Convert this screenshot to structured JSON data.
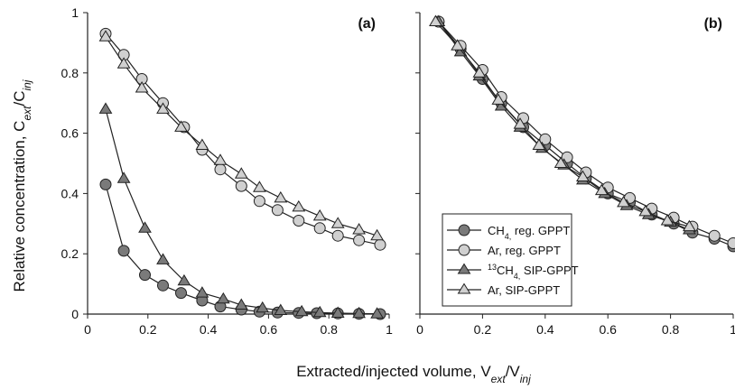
{
  "chart_data": [
    {
      "panel_label": "(a)",
      "type": "line",
      "xlim": [
        0,
        1
      ],
      "ylim": [
        0,
        1
      ],
      "xticks": [
        "0",
        "0.2",
        "0.4",
        "0.6",
        "0.8",
        "1"
      ],
      "yticks": [
        "0",
        "0.2",
        "0.4",
        "0.6",
        "0.8",
        "1"
      ],
      "grid": false,
      "series": [
        {
          "marker": "circle",
          "fill": "#7a7a7a",
          "x": [
            0.06,
            0.12,
            0.19,
            0.25,
            0.31,
            0.38,
            0.44,
            0.51,
            0.57,
            0.63,
            0.7,
            0.76,
            0.83,
            0.9,
            0.97
          ],
          "y": [
            0.43,
            0.21,
            0.13,
            0.095,
            0.07,
            0.045,
            0.025,
            0.015,
            0.008,
            0.005,
            0.004,
            0.003,
            0.002,
            0.001,
            0.0
          ]
        },
        {
          "marker": "circle",
          "fill": "#d0d0d0",
          "x": [
            0.06,
            0.12,
            0.18,
            0.25,
            0.32,
            0.38,
            0.44,
            0.51,
            0.57,
            0.63,
            0.7,
            0.77,
            0.83,
            0.9,
            0.97
          ],
          "y": [
            0.93,
            0.86,
            0.78,
            0.7,
            0.62,
            0.545,
            0.48,
            0.425,
            0.375,
            0.345,
            0.31,
            0.285,
            0.26,
            0.245,
            0.23
          ]
        },
        {
          "marker": "triangle",
          "fill": "#7a7a7a",
          "x": [
            0.06,
            0.12,
            0.19,
            0.25,
            0.32,
            0.38,
            0.45,
            0.51,
            0.58,
            0.64,
            0.71,
            0.77,
            0.83,
            0.9,
            0.96
          ],
          "y": [
            0.68,
            0.45,
            0.285,
            0.18,
            0.11,
            0.07,
            0.05,
            0.03,
            0.02,
            0.012,
            0.008,
            0.005,
            0.003,
            0.002,
            0.001
          ]
        },
        {
          "marker": "triangle",
          "fill": "#d0d0d0",
          "x": [
            0.06,
            0.12,
            0.18,
            0.25,
            0.31,
            0.38,
            0.44,
            0.51,
            0.57,
            0.64,
            0.7,
            0.77,
            0.83,
            0.9,
            0.96
          ],
          "y": [
            0.92,
            0.83,
            0.75,
            0.68,
            0.62,
            0.56,
            0.51,
            0.465,
            0.42,
            0.385,
            0.355,
            0.325,
            0.3,
            0.28,
            0.26
          ]
        }
      ]
    },
    {
      "panel_label": "(b)",
      "type": "line",
      "xlim": [
        0,
        1
      ],
      "ylim": [
        0,
        1
      ],
      "xticks": [
        "0",
        "0.2",
        "0.4",
        "0.6",
        "0.8",
        "1"
      ],
      "yticks": [],
      "grid": false,
      "series": [
        {
          "name": "CH",
          "name_sub": "4,",
          "name_rest": " reg. GPPT",
          "marker": "circle",
          "fill": "#7a7a7a",
          "x": [
            0.06,
            0.13,
            0.2,
            0.26,
            0.33,
            0.4,
            0.47,
            0.53,
            0.6,
            0.67,
            0.74,
            0.81,
            0.87,
            0.94,
            1.0
          ],
          "y": [
            0.97,
            0.88,
            0.78,
            0.7,
            0.62,
            0.56,
            0.5,
            0.45,
            0.4,
            0.37,
            0.33,
            0.3,
            0.27,
            0.25,
            0.225
          ]
        },
        {
          "name": "Ar, reg. GPPT",
          "marker": "circle",
          "fill": "#d0d0d0",
          "x": [
            0.06,
            0.13,
            0.2,
            0.26,
            0.33,
            0.4,
            0.47,
            0.53,
            0.6,
            0.67,
            0.74,
            0.81,
            0.87,
            0.94,
            1.0
          ],
          "y": [
            0.97,
            0.89,
            0.81,
            0.72,
            0.65,
            0.58,
            0.52,
            0.47,
            0.42,
            0.385,
            0.35,
            0.32,
            0.29,
            0.26,
            0.235
          ]
        },
        {
          "name_sup": "13",
          "name": "CH",
          "name_sub": "4,",
          "name_rest": " SIP-GPPT",
          "marker": "triangle",
          "fill": "#7a7a7a",
          "x": [
            0.06,
            0.13,
            0.19,
            0.26,
            0.32,
            0.39,
            0.46,
            0.52,
            0.59,
            0.66,
            0.73,
            0.8,
            0.86
          ],
          "y": [
            0.97,
            0.87,
            0.79,
            0.69,
            0.62,
            0.55,
            0.495,
            0.445,
            0.4,
            0.36,
            0.33,
            0.305,
            0.28
          ]
        },
        {
          "name": "Ar, SIP-GPPT",
          "marker": "triangle",
          "fill": "#d0d0d0",
          "x": [
            0.05,
            0.12,
            0.19,
            0.25,
            0.32,
            0.38,
            0.45,
            0.52,
            0.58,
            0.65,
            0.72,
            0.79,
            0.86
          ],
          "y": [
            0.97,
            0.89,
            0.8,
            0.71,
            0.63,
            0.56,
            0.5,
            0.455,
            0.41,
            0.37,
            0.34,
            0.31,
            0.29
          ]
        }
      ]
    }
  ],
  "axes": {
    "ylabel_main": "Relative concentration, C",
    "ylabel_sub1": "ext",
    "ylabel_mid": "/C",
    "ylabel_sub2": "inj",
    "xlabel_main": "Extracted/injected volume, V",
    "xlabel_sub1": "ext",
    "xlabel_mid": "/V",
    "xlabel_sub2": "inj"
  }
}
